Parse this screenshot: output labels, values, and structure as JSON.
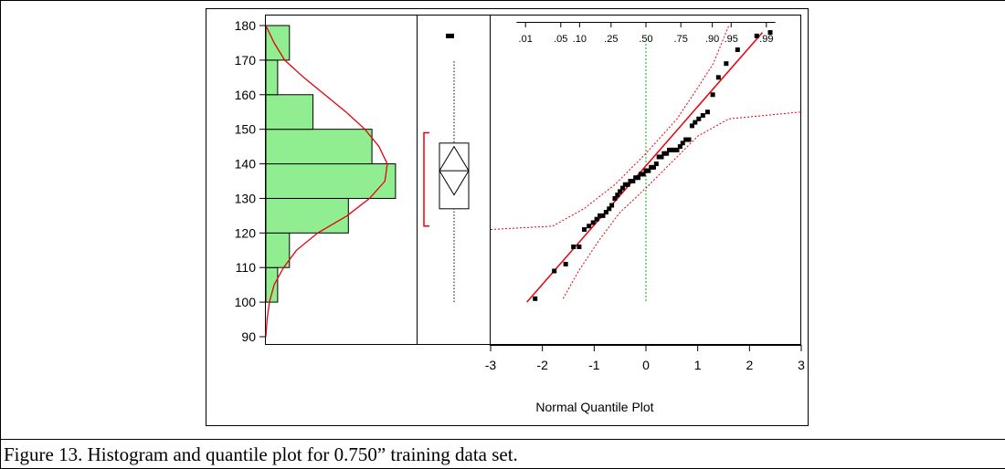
{
  "caption": "Figure 13. Histogram and quantile plot for 0.750” training data set.",
  "colors": {
    "bar_fill": "#90ee90",
    "curve": "#e8000b",
    "ref_line": "#00b000",
    "marker": "#000000"
  },
  "chart_data": [
    {
      "type": "bar",
      "orientation": "horizontal",
      "subtype": "histogram",
      "title": "",
      "ylabel": "",
      "ylim": [
        88,
        182
      ],
      "y_ticks": [
        90,
        100,
        110,
        120,
        130,
        140,
        150,
        160,
        170,
        180
      ],
      "bins": [
        {
          "low": 100,
          "high": 110,
          "count": 1
        },
        {
          "low": 110,
          "high": 120,
          "count": 2
        },
        {
          "low": 120,
          "high": 130,
          "count": 7
        },
        {
          "low": 130,
          "high": 140,
          "count": 11
        },
        {
          "low": 140,
          "high": 150,
          "count": 9
        },
        {
          "low": 150,
          "high": 160,
          "count": 4
        },
        {
          "low": 160,
          "high": 170,
          "count": 1
        },
        {
          "low": 170,
          "high": 180,
          "count": 2
        }
      ],
      "density_curve": [
        [
          180,
          0.0
        ],
        [
          175,
          0.7
        ],
        [
          170,
          1.6
        ],
        [
          165,
          3.2
        ],
        [
          160,
          5.0
        ],
        [
          155,
          6.8
        ],
        [
          150,
          8.4
        ],
        [
          145,
          9.6
        ],
        [
          140,
          10.3
        ],
        [
          135,
          10.1
        ],
        [
          130,
          8.8
        ],
        [
          125,
          6.9
        ],
        [
          120,
          4.4
        ],
        [
          115,
          2.6
        ],
        [
          110,
          1.5
        ],
        [
          105,
          0.7
        ],
        [
          100,
          0.3
        ],
        [
          95,
          0.1
        ],
        [
          90,
          0.0
        ]
      ]
    },
    {
      "type": "box",
      "title": "",
      "outliers": [
        177
      ],
      "whisker_low": 100,
      "q1": 127,
      "median": 138,
      "q3": 146,
      "whisker_high": 170,
      "mean": 138,
      "mean_ci": [
        131,
        145
      ],
      "shortest_half": [
        122,
        149
      ]
    },
    {
      "type": "scatter",
      "title": "",
      "xlabel": "Normal Quantile Plot",
      "xlim": [
        -3,
        3
      ],
      "ylim": [
        88,
        182
      ],
      "x_ticks": [
        -3,
        -2,
        -1,
        0,
        1,
        2,
        3
      ],
      "top_tick_labels": [
        ".01",
        ".05",
        ".10",
        ".25",
        ".50",
        ".75",
        ".90",
        ".95",
        ".99"
      ],
      "top_tick_quantiles": [
        -2.326,
        -1.645,
        -1.282,
        -0.674,
        0,
        0.674,
        1.282,
        1.645,
        2.326
      ],
      "fit_line": [
        [
          -2.3,
          100
        ],
        [
          2.25,
          178
        ]
      ],
      "confidence_band_upper": [
        [
          -3,
          121
        ],
        [
          -1.8,
          122
        ],
        [
          -1.2,
          127
        ],
        [
          -0.6,
          134
        ],
        [
          0,
          143
        ],
        [
          0.6,
          153
        ],
        [
          1.0,
          162
        ],
        [
          1.3,
          169
        ],
        [
          1.6,
          180
        ]
      ],
      "confidence_band_lower": [
        [
          -1.6,
          101
        ],
        [
          -1.3,
          109
        ],
        [
          -0.9,
          118
        ],
        [
          -0.5,
          126
        ],
        [
          0,
          133
        ],
        [
          0.6,
          142
        ],
        [
          1.0,
          148
        ],
        [
          1.6,
          153
        ],
        [
          3,
          155
        ]
      ],
      "points": [
        [
          -2.14,
          101
        ],
        [
          -1.77,
          109
        ],
        [
          -1.55,
          111
        ],
        [
          -1.4,
          116
        ],
        [
          -1.29,
          116
        ],
        [
          -1.19,
          121
        ],
        [
          -1.1,
          122
        ],
        [
          -1.02,
          123
        ],
        [
          -0.95,
          124
        ],
        [
          -0.89,
          125
        ],
        [
          -0.83,
          125
        ],
        [
          -0.77,
          126
        ],
        [
          -0.71,
          127
        ],
        [
          -0.66,
          128
        ],
        [
          -0.6,
          130
        ],
        [
          -0.55,
          131
        ],
        [
          -0.5,
          132
        ],
        [
          -0.45,
          133
        ],
        [
          -0.4,
          134
        ],
        [
          -0.35,
          134
        ],
        [
          -0.3,
          135
        ],
        [
          -0.25,
          135
        ],
        [
          -0.2,
          136
        ],
        [
          -0.15,
          136
        ],
        [
          -0.1,
          137
        ],
        [
          -0.05,
          137
        ],
        [
          0.0,
          138
        ],
        [
          0.05,
          138
        ],
        [
          0.1,
          139
        ],
        [
          0.15,
          139
        ],
        [
          0.2,
          140
        ],
        [
          0.25,
          142
        ],
        [
          0.3,
          142
        ],
        [
          0.35,
          143
        ],
        [
          0.4,
          143
        ],
        [
          0.45,
          144
        ],
        [
          0.5,
          144
        ],
        [
          0.55,
          144
        ],
        [
          0.6,
          144
        ],
        [
          0.66,
          145
        ],
        [
          0.71,
          146
        ],
        [
          0.77,
          147
        ],
        [
          0.83,
          147
        ],
        [
          0.89,
          151
        ],
        [
          0.95,
          152
        ],
        [
          1.02,
          153
        ],
        [
          1.1,
          154
        ],
        [
          1.19,
          155
        ],
        [
          1.29,
          160
        ],
        [
          1.4,
          165
        ],
        [
          1.55,
          169
        ],
        [
          1.77,
          173
        ],
        [
          2.14,
          177
        ],
        [
          2.4,
          178
        ]
      ]
    }
  ]
}
